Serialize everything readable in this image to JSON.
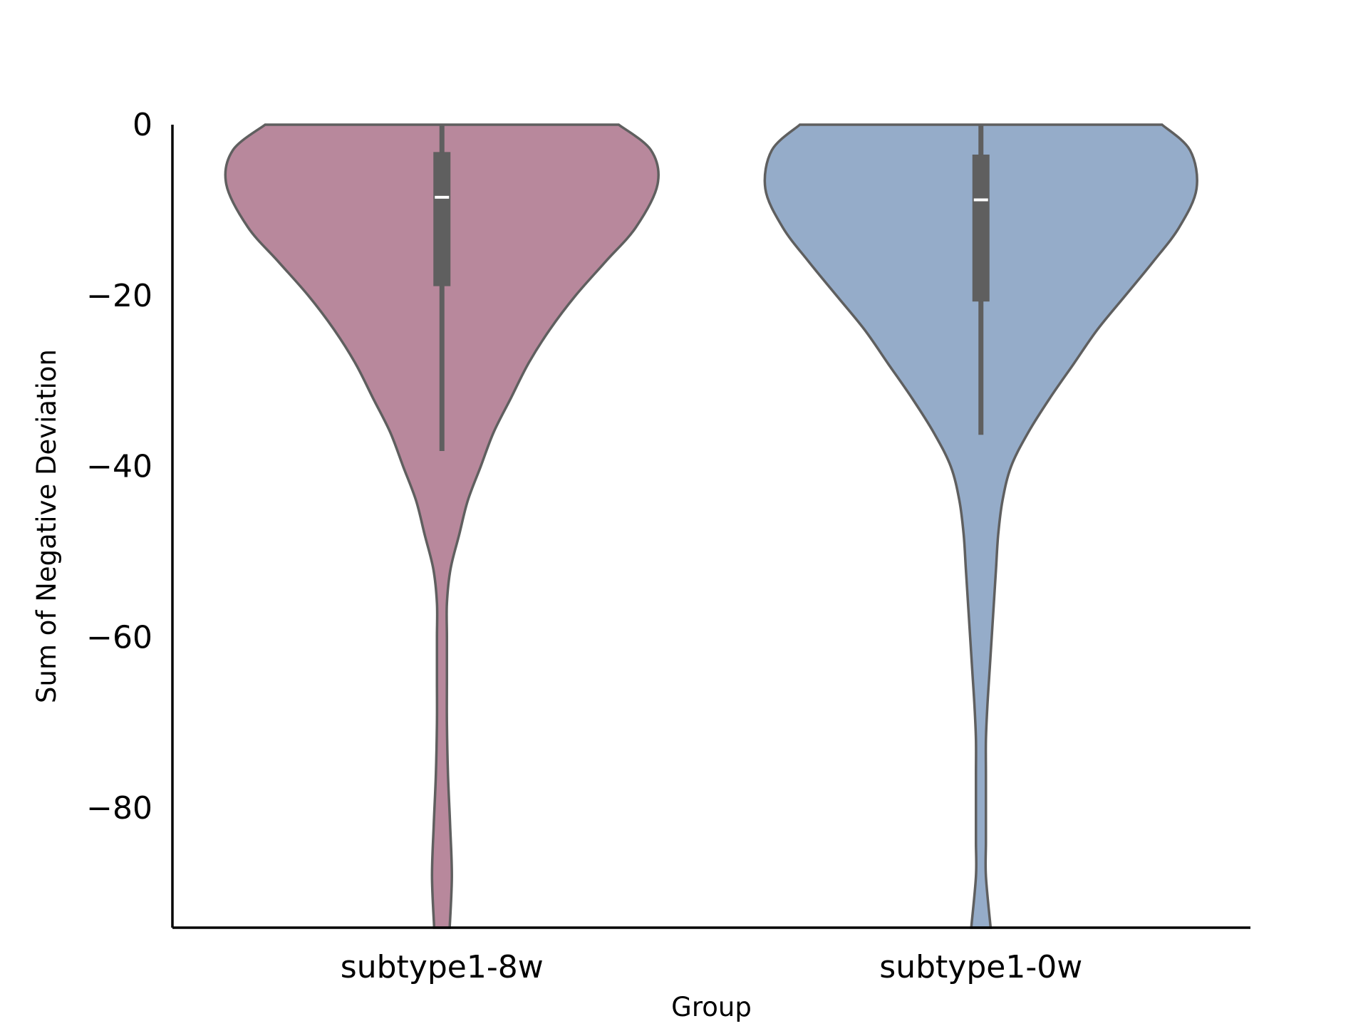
{
  "chart_data": {
    "type": "violin",
    "xlabel": "Group",
    "ylabel": "Sum of Negative Deviation",
    "categories": [
      "subtype1-8w",
      "subtype1-0w"
    ],
    "ylim": [
      -94,
      0
    ],
    "yticks": [
      0,
      -20,
      -40,
      -60,
      -80
    ],
    "ytick_labels": [
      "0",
      "−20",
      "−40",
      "−60",
      "−80"
    ],
    "grid": false,
    "legend": "none",
    "series": [
      {
        "category": "subtype1-8w",
        "color": "#b8889c",
        "box": {
          "q1": -18.9,
          "median": -8.5,
          "q3": -3.2,
          "whisker_low": -38.2,
          "whisker_high": 0
        },
        "density": [
          {
            "y": 0,
            "w": 0.82
          },
          {
            "y": -3,
            "w": 0.97
          },
          {
            "y": -7,
            "w": 1.0
          },
          {
            "y": -12,
            "w": 0.9
          },
          {
            "y": -16,
            "w": 0.76
          },
          {
            "y": -20,
            "w": 0.62
          },
          {
            "y": -24,
            "w": 0.5
          },
          {
            "y": -28,
            "w": 0.4
          },
          {
            "y": -32,
            "w": 0.32
          },
          {
            "y": -36,
            "w": 0.24
          },
          {
            "y": -40,
            "w": 0.18
          },
          {
            "y": -44,
            "w": 0.12
          },
          {
            "y": -48,
            "w": 0.08
          },
          {
            "y": -52,
            "w": 0.04
          },
          {
            "y": -56,
            "w": 0.012
          },
          {
            "y": -60,
            "w": 0.003
          },
          {
            "y": -65,
            "w": 0.003
          },
          {
            "y": -70,
            "w": 0.01
          },
          {
            "y": -76,
            "w": 0.028
          },
          {
            "y": -82,
            "w": 0.038
          },
          {
            "y": -88,
            "w": 0.046
          },
          {
            "y": -94,
            "w": 0.036
          }
        ]
      },
      {
        "category": "subtype1-0w",
        "color": "#95acc9",
        "box": {
          "q1": -20.7,
          "median": -8.8,
          "q3": -3.5,
          "whisker_low": -36.3,
          "whisker_high": 0
        },
        "density": [
          {
            "y": 0,
            "w": 0.84
          },
          {
            "y": -3,
            "w": 0.97
          },
          {
            "y": -7.5,
            "w": 1.0
          },
          {
            "y": -12,
            "w": 0.92
          },
          {
            "y": -16,
            "w": 0.8
          },
          {
            "y": -20,
            "w": 0.67
          },
          {
            "y": -24,
            "w": 0.54
          },
          {
            "y": -28,
            "w": 0.43
          },
          {
            "y": -32,
            "w": 0.32
          },
          {
            "y": -36,
            "w": 0.22
          },
          {
            "y": -40,
            "w": 0.14
          },
          {
            "y": -44,
            "w": 0.1
          },
          {
            "y": -48,
            "w": 0.08
          },
          {
            "y": -52,
            "w": 0.07
          },
          {
            "y": -56,
            "w": 0.06
          },
          {
            "y": -60,
            "w": 0.05
          },
          {
            "y": -64,
            "w": 0.04
          },
          {
            "y": -68,
            "w": 0.03
          },
          {
            "y": -72,
            "w": 0.02
          },
          {
            "y": -76,
            "w": 0.01
          },
          {
            "y": -80,
            "w": 0.002
          },
          {
            "y": -84,
            "w": 0.002
          },
          {
            "y": -88,
            "w": 0.01
          },
          {
            "y": -94,
            "w": 0.045
          }
        ]
      }
    ]
  }
}
